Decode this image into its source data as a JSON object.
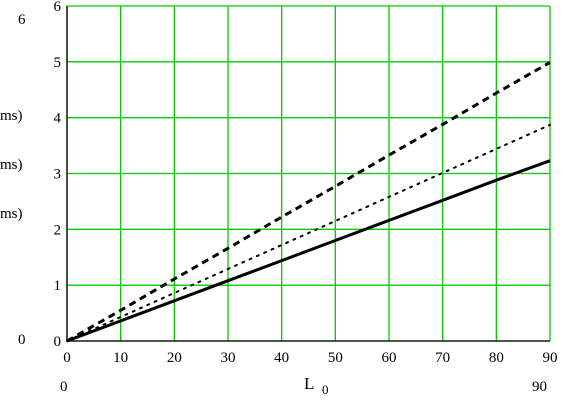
{
  "chart_data": {
    "type": "line",
    "x_ticks": [
      "0",
      "10",
      "20",
      "30",
      "40",
      "50",
      "60",
      "70",
      "80",
      "90"
    ],
    "y_ticks": [
      "0",
      "1",
      "2",
      "3",
      "4",
      "5",
      "6"
    ],
    "xlim": [
      0,
      90
    ],
    "ylim": [
      0,
      6
    ],
    "grid": true,
    "grid_color": "#00cc00",
    "xlabel": {
      "main": "L",
      "sub": "0"
    },
    "x_range_left": "0",
    "x_range_right": "90",
    "y_range_top": "6",
    "y_range_bottom": "0",
    "left_labels": [
      "ms)",
      "ms)",
      "ms)"
    ],
    "series": [
      {
        "style": "dashed",
        "width": 3,
        "color": "#000000",
        "x": [
          0,
          10,
          20,
          30,
          40,
          50,
          60,
          70,
          80,
          90
        ],
        "y": [
          0,
          0.55,
          1.11,
          1.66,
          2.22,
          2.77,
          3.33,
          3.88,
          4.44,
          4.99
        ]
      },
      {
        "style": "dotted",
        "width": 2,
        "color": "#000000",
        "x": [
          0,
          10,
          20,
          30,
          40,
          50,
          60,
          70,
          80,
          90
        ],
        "y": [
          0,
          0.43,
          0.86,
          1.29,
          1.72,
          2.15,
          2.58,
          3.01,
          3.44,
          3.87
        ]
      },
      {
        "style": "solid",
        "width": 3,
        "color": "#000000",
        "x": [
          0,
          10,
          20,
          30,
          40,
          50,
          60,
          70,
          80,
          90
        ],
        "y": [
          0,
          0.36,
          0.72,
          1.08,
          1.44,
          1.8,
          2.16,
          2.52,
          2.88,
          3.23
        ]
      }
    ]
  }
}
